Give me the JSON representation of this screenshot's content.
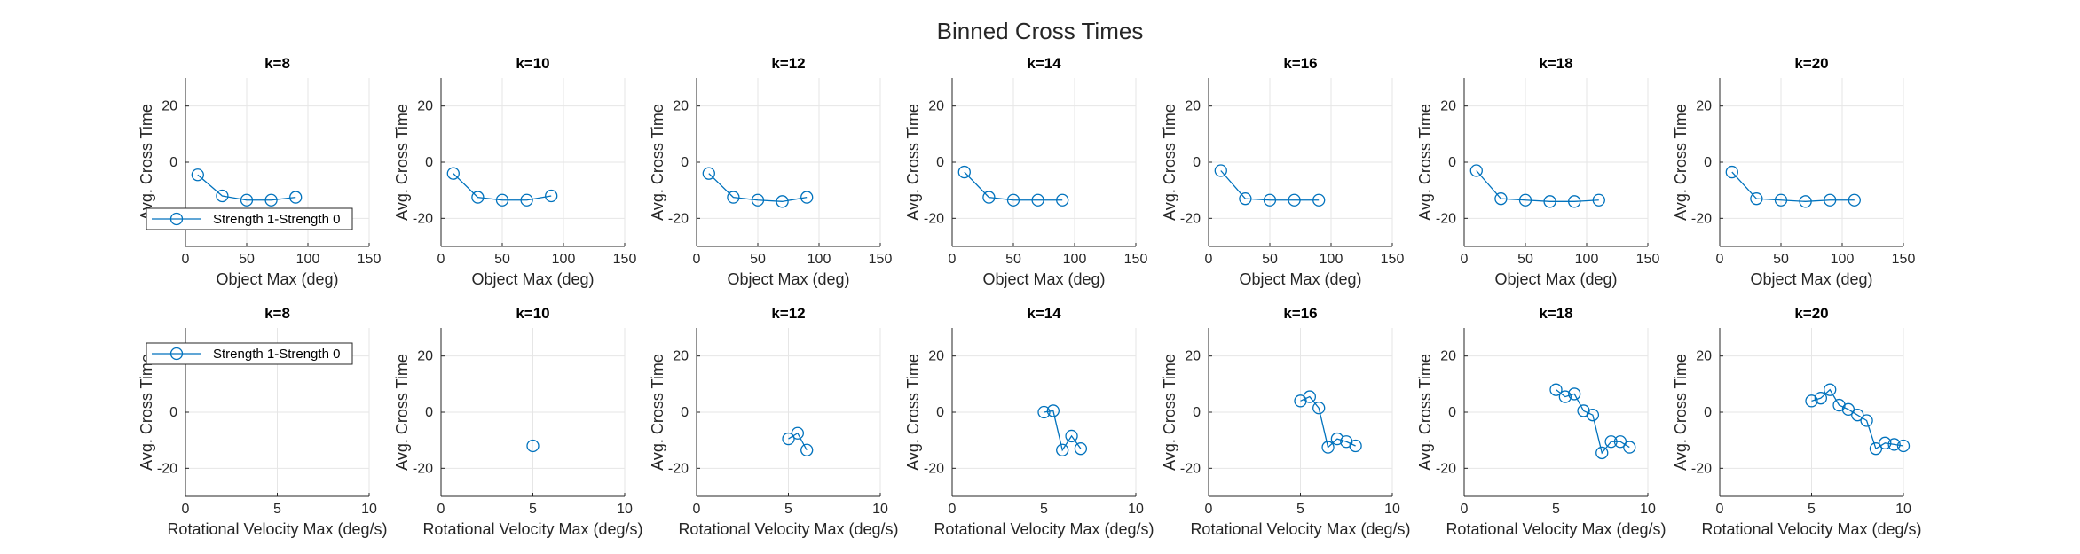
{
  "figure_title": "Binned Cross Times",
  "colors": {
    "series": "#0072bd"
  },
  "chart_data": [
    {
      "type": "line",
      "title": "k=8",
      "xlabel": "Object Max (deg)",
      "ylabel": "Avg. Cross Time",
      "xlim": [
        0,
        150
      ],
      "ylim": [
        -30,
        30
      ],
      "xticks": [
        0,
        50,
        100,
        150
      ],
      "yticks": [
        -20,
        0,
        20
      ],
      "grid": true,
      "legend": {
        "entries": [
          "Strength 1-Strength 0"
        ],
        "placement": "bottom-left"
      },
      "series": [
        {
          "name": "Strength 1-Strength 0",
          "x": [
            10,
            30,
            50,
            70,
            90
          ],
          "y": [
            -4.5,
            -12,
            -13.5,
            -13.5,
            -12.5
          ]
        }
      ]
    },
    {
      "type": "line",
      "title": "k=10",
      "xlabel": "Object Max (deg)",
      "ylabel": "Avg. Cross Time",
      "xlim": [
        0,
        150
      ],
      "ylim": [
        -30,
        30
      ],
      "xticks": [
        0,
        50,
        100,
        150
      ],
      "yticks": [
        -20,
        0,
        20
      ],
      "grid": true,
      "series": [
        {
          "name": "Strength 1-Strength 0",
          "x": [
            10,
            30,
            50,
            70,
            90
          ],
          "y": [
            -4,
            -12.5,
            -13.5,
            -13.5,
            -12
          ]
        }
      ]
    },
    {
      "type": "line",
      "title": "k=12",
      "xlabel": "Object Max (deg)",
      "ylabel": "Avg. Cross Time",
      "xlim": [
        0,
        150
      ],
      "ylim": [
        -30,
        30
      ],
      "xticks": [
        0,
        50,
        100,
        150
      ],
      "yticks": [
        -20,
        0,
        20
      ],
      "grid": true,
      "series": [
        {
          "name": "Strength 1-Strength 0",
          "x": [
            10,
            30,
            50,
            70,
            90
          ],
          "y": [
            -4,
            -12.5,
            -13.5,
            -14,
            -12.5
          ]
        }
      ]
    },
    {
      "type": "line",
      "title": "k=14",
      "xlabel": "Object Max (deg)",
      "ylabel": "Avg. Cross Time",
      "xlim": [
        0,
        150
      ],
      "ylim": [
        -30,
        30
      ],
      "xticks": [
        0,
        50,
        100,
        150
      ],
      "yticks": [
        -20,
        0,
        20
      ],
      "grid": true,
      "series": [
        {
          "name": "Strength 1-Strength 0",
          "x": [
            10,
            30,
            50,
            70,
            90
          ],
          "y": [
            -3.5,
            -12.5,
            -13.5,
            -13.5,
            -13.5
          ]
        }
      ]
    },
    {
      "type": "line",
      "title": "k=16",
      "xlabel": "Object Max (deg)",
      "ylabel": "Avg. Cross Time",
      "xlim": [
        0,
        150
      ],
      "ylim": [
        -30,
        30
      ],
      "xticks": [
        0,
        50,
        100,
        150
      ],
      "yticks": [
        -20,
        0,
        20
      ],
      "grid": true,
      "series": [
        {
          "name": "Strength 1-Strength 0",
          "x": [
            10,
            30,
            50,
            70,
            90
          ],
          "y": [
            -3,
            -13,
            -13.5,
            -13.5,
            -13.5
          ]
        }
      ]
    },
    {
      "type": "line",
      "title": "k=18",
      "xlabel": "Object Max (deg)",
      "ylabel": "Avg. Cross Time",
      "xlim": [
        0,
        150
      ],
      "ylim": [
        -30,
        30
      ],
      "xticks": [
        0,
        50,
        100,
        150
      ],
      "yticks": [
        -20,
        0,
        20
      ],
      "grid": true,
      "series": [
        {
          "name": "Strength 1-Strength 0",
          "x": [
            10,
            30,
            50,
            70,
            90,
            110
          ],
          "y": [
            -3,
            -13,
            -13.5,
            -14,
            -14,
            -13.5
          ]
        }
      ]
    },
    {
      "type": "line",
      "title": "k=20",
      "xlabel": "Object Max (deg)",
      "ylabel": "Avg. Cross Time",
      "xlim": [
        0,
        150
      ],
      "ylim": [
        -30,
        30
      ],
      "xticks": [
        0,
        50,
        100,
        150
      ],
      "yticks": [
        -20,
        0,
        20
      ],
      "grid": true,
      "series": [
        {
          "name": "Strength 1-Strength 0",
          "x": [
            10,
            30,
            50,
            70,
            90,
            110
          ],
          "y": [
            -3.5,
            -13,
            -13.5,
            -14,
            -13.5,
            -13.5
          ]
        }
      ]
    },
    {
      "type": "line",
      "title": "k=8",
      "xlabel": "Rotational Velocity Max (deg/s)",
      "ylabel": "Avg. Cross Time",
      "xlim": [
        0,
        10
      ],
      "ylim": [
        -30,
        30
      ],
      "xticks": [
        0,
        5,
        10
      ],
      "yticks": [
        -20,
        0,
        20
      ],
      "grid": true,
      "legend": {
        "entries": [
          "Strength 1-Strength 0"
        ],
        "placement": "top-left"
      },
      "series": [
        {
          "name": "Strength 1-Strength 0",
          "x": [],
          "y": []
        }
      ]
    },
    {
      "type": "line",
      "title": "k=10",
      "xlabel": "Rotational Velocity Max (deg/s)",
      "ylabel": "Avg. Cross Time",
      "xlim": [
        0,
        10
      ],
      "ylim": [
        -30,
        30
      ],
      "xticks": [
        0,
        5,
        10
      ],
      "yticks": [
        -20,
        0,
        20
      ],
      "grid": true,
      "series": [
        {
          "name": "Strength 1-Strength 0",
          "x": [
            5
          ],
          "y": [
            -12
          ]
        }
      ]
    },
    {
      "type": "line",
      "title": "k=12",
      "xlabel": "Rotational Velocity Max (deg/s)",
      "ylabel": "Avg. Cross Time",
      "xlim": [
        0,
        10
      ],
      "ylim": [
        -30,
        30
      ],
      "xticks": [
        0,
        5,
        10
      ],
      "yticks": [
        -20,
        0,
        20
      ],
      "grid": true,
      "series": [
        {
          "name": "Strength 1-Strength 0",
          "x": [
            5,
            5.5,
            6
          ],
          "y": [
            -9.5,
            -7.5,
            -13.5
          ]
        }
      ]
    },
    {
      "type": "line",
      "title": "k=14",
      "xlabel": "Rotational Velocity Max (deg/s)",
      "ylabel": "Avg. Cross Time",
      "xlim": [
        0,
        10
      ],
      "ylim": [
        -30,
        30
      ],
      "xticks": [
        0,
        5,
        10
      ],
      "yticks": [
        -20,
        0,
        20
      ],
      "grid": true,
      "series": [
        {
          "name": "Strength 1-Strength 0",
          "x": [
            5,
            5.5,
            6,
            6.5,
            7
          ],
          "y": [
            0,
            0.5,
            -13.5,
            -8.5,
            -13
          ]
        }
      ]
    },
    {
      "type": "line",
      "title": "k=16",
      "xlabel": "Rotational Velocity Max (deg/s)",
      "ylabel": "Avg. Cross Time",
      "xlim": [
        0,
        10
      ],
      "ylim": [
        -30,
        30
      ],
      "xticks": [
        0,
        5,
        10
      ],
      "yticks": [
        -20,
        0,
        20
      ],
      "grid": true,
      "series": [
        {
          "name": "Strength 1-Strength 0",
          "x": [
            5,
            5.5,
            6,
            6.5,
            7,
            7.5,
            8
          ],
          "y": [
            4,
            5.5,
            1.5,
            -12.5,
            -9.5,
            -10.5,
            -12
          ]
        }
      ]
    },
    {
      "type": "line",
      "title": "k=18",
      "xlabel": "Rotational Velocity Max (deg/s)",
      "ylabel": "Avg. Cross Time",
      "xlim": [
        0,
        10
      ],
      "ylim": [
        -30,
        30
      ],
      "xticks": [
        0,
        5,
        10
      ],
      "yticks": [
        -20,
        0,
        20
      ],
      "grid": true,
      "series": [
        {
          "name": "Strength 1-Strength 0",
          "x": [
            5,
            5.5,
            6,
            6.5,
            7,
            7.5,
            8,
            8.5,
            9
          ],
          "y": [
            8,
            5.5,
            6.5,
            0.5,
            -1,
            -14.5,
            -10.5,
            -10.5,
            -12.5
          ]
        }
      ]
    },
    {
      "type": "line",
      "title": "k=20",
      "xlabel": "Rotational Velocity Max (deg/s)",
      "ylabel": "Avg. Cross Time",
      "xlim": [
        0,
        10
      ],
      "ylim": [
        -30,
        30
      ],
      "xticks": [
        0,
        5,
        10
      ],
      "yticks": [
        -20,
        0,
        20
      ],
      "grid": true,
      "series": [
        {
          "name": "Strength 1-Strength 0",
          "x": [
            5,
            5.5,
            6,
            6.5,
            7,
            7.5,
            8,
            8.5,
            9,
            9.5,
            10
          ],
          "y": [
            4,
            5,
            8,
            2.5,
            1,
            -1,
            -3,
            -13,
            -11,
            -11.5,
            -12
          ]
        }
      ]
    }
  ]
}
